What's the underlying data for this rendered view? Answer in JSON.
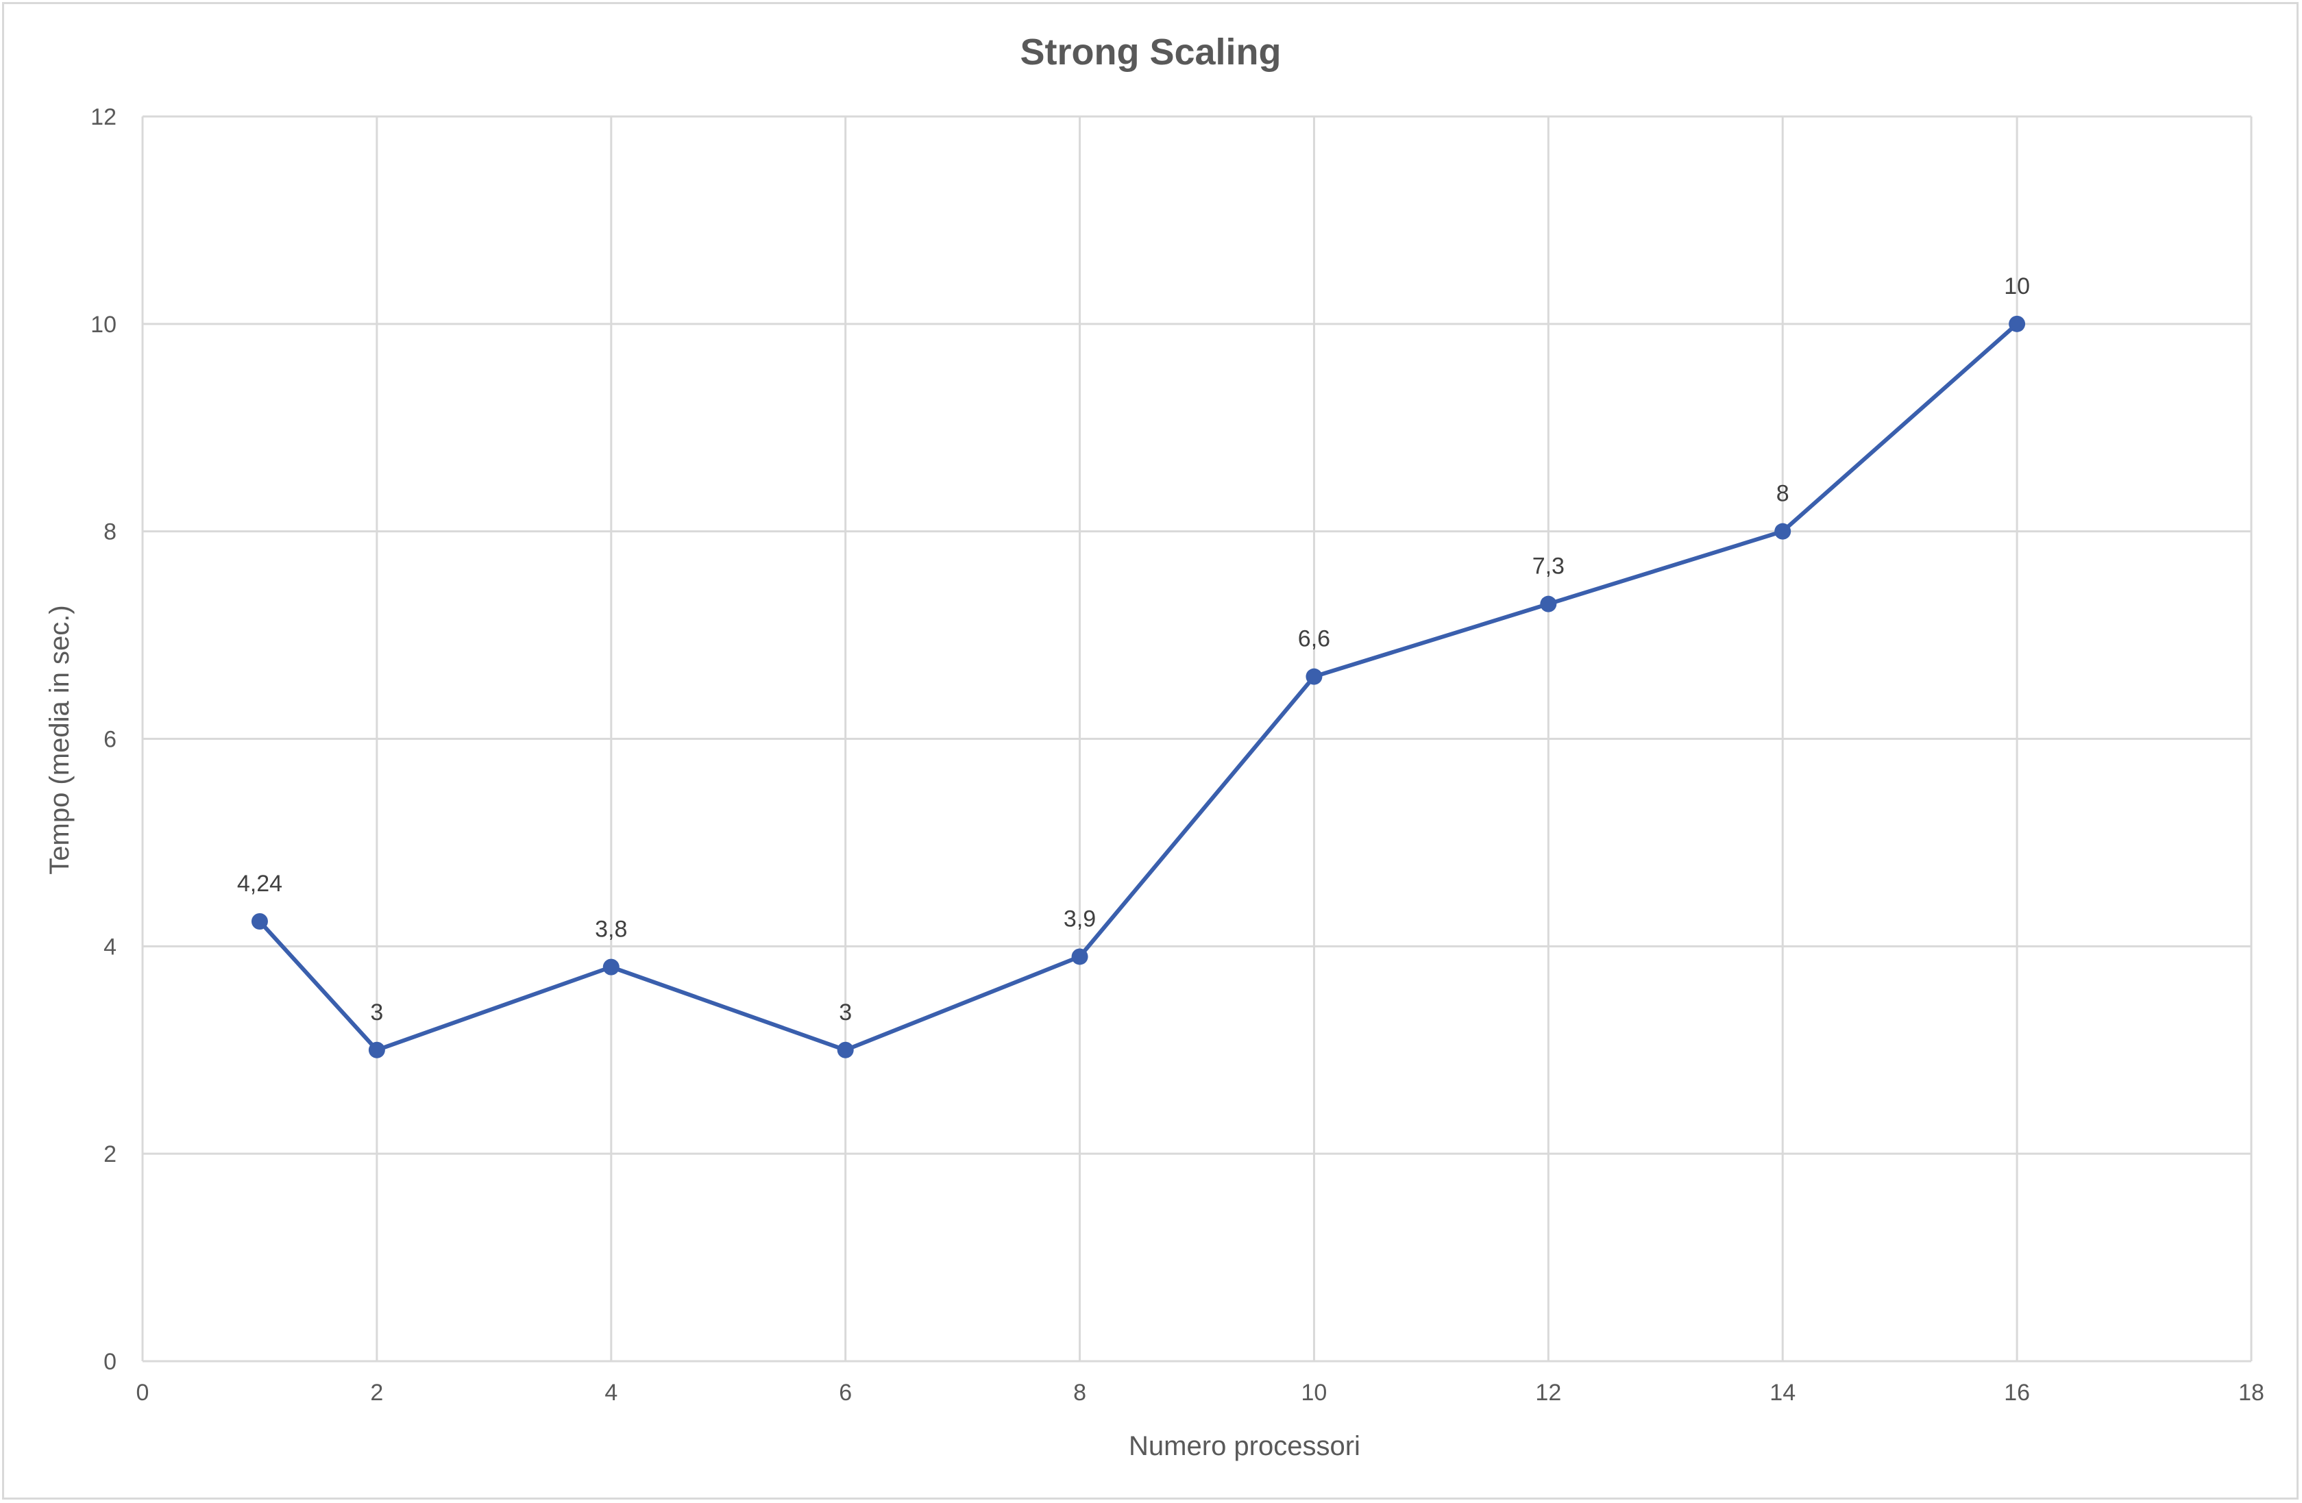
{
  "chart_data": {
    "type": "line",
    "title": "Strong Scaling",
    "xlabel": "Numero processori",
    "ylabel": "Tempo (media in sec.)",
    "xlim": [
      0,
      18
    ],
    "ylim": [
      0,
      12
    ],
    "x_ticks": [
      "0",
      "2",
      "4",
      "6",
      "8",
      "10",
      "12",
      "14",
      "16",
      "18"
    ],
    "y_ticks": [
      "0",
      "2",
      "4",
      "6",
      "8",
      "10",
      "12"
    ],
    "grid": true,
    "legend": "none",
    "series": [
      {
        "color": "#3a5fad",
        "points": [
          {
            "x": 1,
            "y": 4.24,
            "label": "4,24"
          },
          {
            "x": 2,
            "y": 3,
            "label": "3"
          },
          {
            "x": 4,
            "y": 3.8,
            "label": "3,8"
          },
          {
            "x": 6,
            "y": 3,
            "label": "3"
          },
          {
            "x": 8,
            "y": 3.9,
            "label": "3,9"
          },
          {
            "x": 10,
            "y": 6.6,
            "label": "6,6"
          },
          {
            "x": 12,
            "y": 7.3,
            "label": "7,3"
          },
          {
            "x": 14,
            "y": 8,
            "label": "8"
          },
          {
            "x": 16,
            "y": 10,
            "label": "10"
          }
        ]
      }
    ]
  }
}
